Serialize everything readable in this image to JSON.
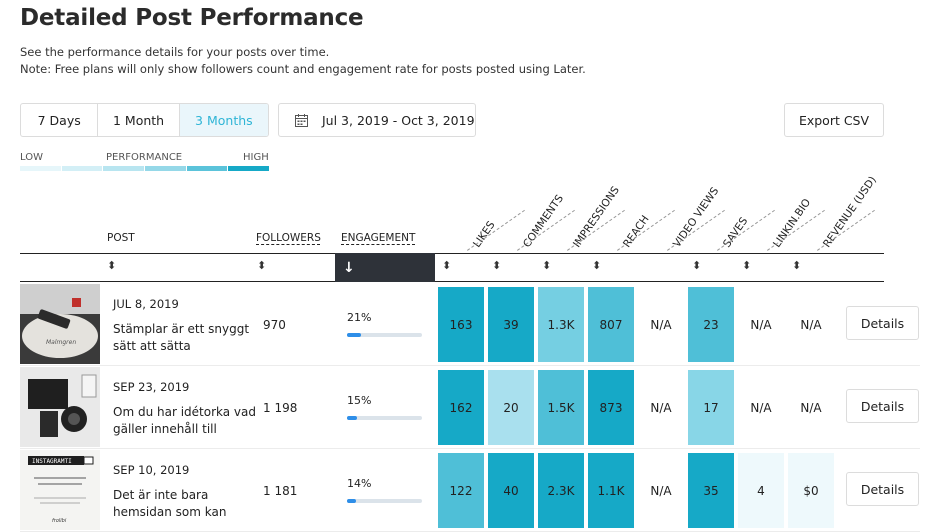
{
  "header": {
    "title": "Detailed Post Performance",
    "subtitle_line1": "See the performance details for your posts over time.",
    "subtitle_line2": "Note: Free plans will only show followers count and engagement rate for posts posted using Later."
  },
  "range_tabs": [
    {
      "label": "7 Days",
      "active": false
    },
    {
      "label": "1 Month",
      "active": false
    },
    {
      "label": "3 Months",
      "active": true
    }
  ],
  "date_range": {
    "label": "Jul 3, 2019 - Oct 3, 2019",
    "icon": "calendar-icon"
  },
  "export_label": "Export CSV",
  "legend": {
    "low": "LOW",
    "mid": "PERFORMANCE",
    "high": "HIGH",
    "colors": [
      "#e6f6fa",
      "#d3eff6",
      "#b8e5f0",
      "#95d8e8",
      "#5bc3da",
      "#16a9c7"
    ]
  },
  "columns": {
    "post": "POST",
    "followers": "FOLLOWERS",
    "engagement": "ENGAGEMENT",
    "metrics": [
      "LIKES",
      "COMMENTS",
      "IMPRESSIONS",
      "REACH",
      "VIDEO VIEWS",
      "SAVES",
      "LINKIN.BIO",
      "REVENUE (USD)"
    ]
  },
  "sort": {
    "active_column": "ENGAGEMENT",
    "direction": "down"
  },
  "posts": [
    {
      "date": "JUL 8, 2019",
      "caption": "Stämplar är ett snyggt sätt att sätta",
      "followers": "970",
      "engagement": "21%",
      "engagement_rate": 0.21,
      "metrics": [
        "163",
        "39",
        "1.3K",
        "807",
        "N/A",
        "23",
        "N/A",
        "N/A"
      ],
      "metric_colors": [
        "#16a9c7",
        "#16a9c7",
        "#75cfe2",
        "#4fbfd7",
        "",
        "#4fbfd7",
        "",
        ""
      ],
      "details_label": "Details"
    },
    {
      "date": "SEP 23, 2019",
      "caption": "Om du har idétorka vad gäller innehåll till",
      "followers": "1 198",
      "engagement": "15%",
      "engagement_rate": 0.15,
      "metrics": [
        "162",
        "20",
        "1.5K",
        "873",
        "N/A",
        "17",
        "N/A",
        "N/A"
      ],
      "metric_colors": [
        "#16a9c7",
        "#a9e0ee",
        "#4fbfd7",
        "#16a9c7",
        "",
        "#88d6e7",
        "",
        ""
      ],
      "details_label": "Details"
    },
    {
      "date": "SEP 10, 2019",
      "caption": "Det är inte bara hemsidan som kan",
      "followers": "1 181",
      "engagement": "14%",
      "engagement_rate": 0.14,
      "metrics": [
        "122",
        "40",
        "2.3K",
        "1.1K",
        "N/A",
        "35",
        "4",
        "$0"
      ],
      "metric_colors": [
        "#4fbfd7",
        "#16a9c7",
        "#16a9c7",
        "#16a9c7",
        "",
        "#16a9c7",
        "#eef9fc",
        "#eef9fc"
      ],
      "details_label": "Details"
    }
  ]
}
